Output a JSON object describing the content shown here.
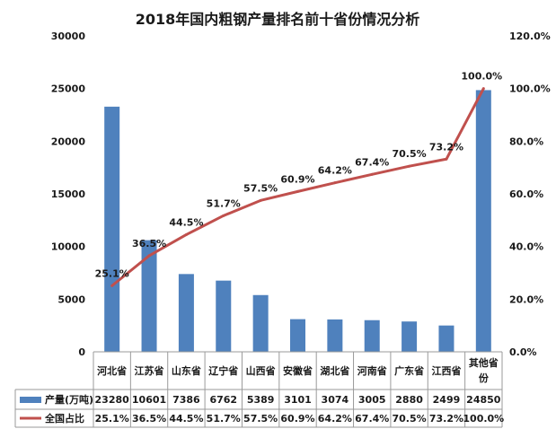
{
  "chart_data": {
    "type": "bar",
    "title": "2018年国内粗钢产量排名前十省份情况分析",
    "categories": [
      "河北省",
      "江苏省",
      "山东省",
      "辽宁省",
      "山西省",
      "安徽省",
      "湖北省",
      "河南省",
      "广东省",
      "江西省",
      "其他省份"
    ],
    "category_lines": [
      [
        "河北省"
      ],
      [
        "江苏省"
      ],
      [
        "山东省"
      ],
      [
        "辽宁省"
      ],
      [
        "山西省"
      ],
      [
        "安徽省"
      ],
      [
        "湖北省"
      ],
      [
        "河南省"
      ],
      [
        "广东省"
      ],
      [
        "江西省"
      ],
      [
        "其他省",
        "份"
      ]
    ],
    "series": [
      {
        "name": "产量(万吨)",
        "kind": "bar",
        "axis": "left",
        "values": [
          23280,
          10601,
          7386,
          6762,
          5389,
          3101,
          3074,
          3005,
          2880,
          2499,
          24850
        ],
        "color": "#4f81bd"
      },
      {
        "name": "全国占比",
        "kind": "line",
        "axis": "right",
        "values": [
          25.1,
          36.5,
          44.5,
          51.7,
          57.5,
          60.9,
          64.2,
          67.4,
          70.5,
          73.2,
          100.0
        ],
        "labels": [
          "25.1%",
          "36.5%",
          "44.5%",
          "51.7%",
          "57.5%",
          "60.9%",
          "64.2%",
          "67.4%",
          "70.5%",
          "73.2%",
          "100.0%"
        ],
        "color": "#c0504d"
      }
    ],
    "y_left": {
      "ylim": [
        0,
        30000
      ],
      "ticks": [
        0,
        5000,
        10000,
        15000,
        20000,
        25000,
        30000
      ],
      "tick_labels": [
        "0",
        "5000",
        "10000",
        "15000",
        "20000",
        "25000",
        "30000"
      ]
    },
    "y_right": {
      "ylim": [
        0,
        120
      ],
      "ticks": [
        0,
        20,
        40,
        60,
        80,
        100,
        120
      ],
      "tick_labels": [
        "0.0%",
        "20.0%",
        "40.0%",
        "60.0%",
        "80.0%",
        "100.0%",
        "120.0%"
      ]
    },
    "data_table": true,
    "grid": false
  }
}
